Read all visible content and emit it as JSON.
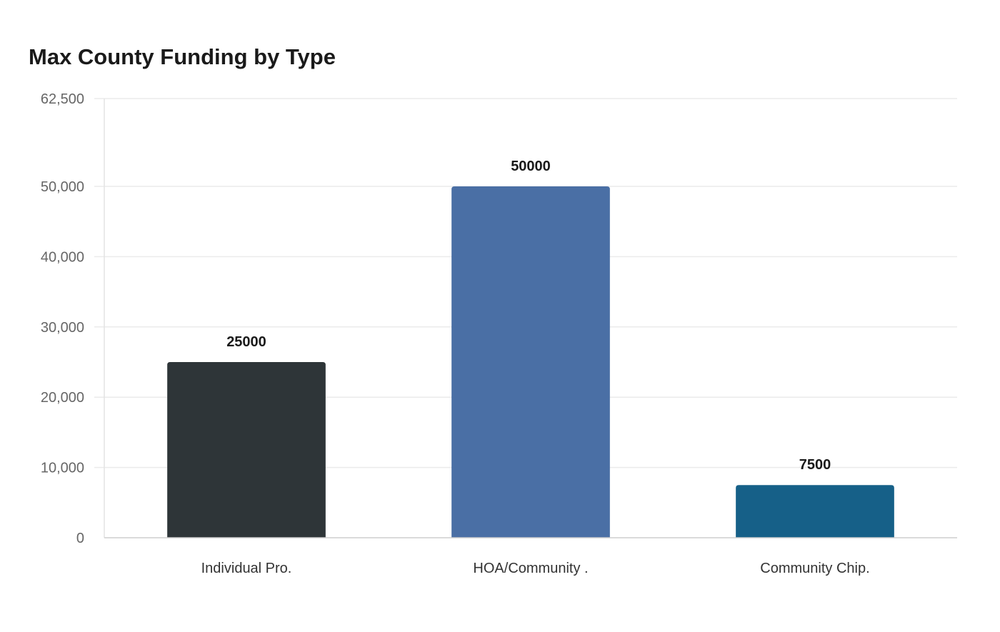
{
  "chart_data": {
    "type": "bar",
    "title": "Max County Funding by Type",
    "xlabel": "",
    "ylabel": "",
    "categories": [
      "Individual Pro.",
      "HOA/Community .",
      "Community Chip."
    ],
    "values": [
      25000,
      50000,
      7500
    ],
    "data_labels": [
      "25000",
      "50000",
      "7500"
    ],
    "colors": [
      "#2e3538",
      "#4a6fa5",
      "#166088"
    ],
    "ylim": [
      0,
      62500
    ],
    "yticks": [
      0,
      10000,
      20000,
      30000,
      40000,
      50000,
      62500
    ],
    "ytick_labels": [
      "0",
      "10,000",
      "20,000",
      "30,000",
      "40,000",
      "50,000",
      "62,500"
    ],
    "grid": true,
    "legend": "none"
  }
}
